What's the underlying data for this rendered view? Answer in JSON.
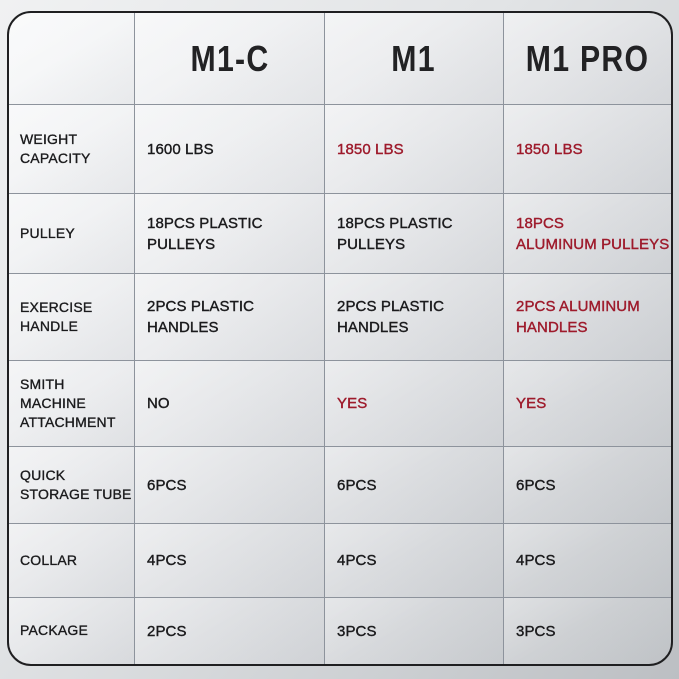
{
  "colors": {
    "highlight_red": "#9e1b2c",
    "text_black": "#1b1b1d",
    "grid_line": "#8d939c",
    "outer_border": "#1f1f21"
  },
  "chart_data": {
    "type": "table",
    "title": "",
    "columns": [
      "M1-C",
      "M1",
      "M1 PRO"
    ],
    "rows": [
      {
        "label": "WEIGHT\nCAPACITY",
        "cells": [
          {
            "text": "1600 LBS",
            "highlight": false
          },
          {
            "text": "1850 LBS",
            "highlight": true
          },
          {
            "text": "1850 LBS",
            "highlight": true
          }
        ]
      },
      {
        "label": "PULLEY",
        "cells": [
          {
            "text": "18PCS PLASTIC\nPULLEYS",
            "highlight": false
          },
          {
            "text": "18PCS PLASTIC\nPULLEYS",
            "highlight": false
          },
          {
            "text": "18PCS\nALUMINUM PULLEYS",
            "highlight": true
          }
        ]
      },
      {
        "label": "EXERCISE\nHANDLE",
        "cells": [
          {
            "text": "2PCS PLASTIC\nHANDLES",
            "highlight": false
          },
          {
            "text": "2PCS PLASTIC\nHANDLES",
            "highlight": false
          },
          {
            "text": "2PCS ALUMINUM\nHANDLES",
            "highlight": true
          }
        ]
      },
      {
        "label": "SMITH MACHINE\nATTACHMENT",
        "cells": [
          {
            "text": "NO",
            "highlight": false
          },
          {
            "text": "YES",
            "highlight": true
          },
          {
            "text": "YES",
            "highlight": true
          }
        ]
      },
      {
        "label": "QUICK\nSTORAGE TUBE",
        "cells": [
          {
            "text": "6PCS",
            "highlight": false
          },
          {
            "text": "6PCS",
            "highlight": false
          },
          {
            "text": "6PCS",
            "highlight": false
          }
        ]
      },
      {
        "label": "COLLAR",
        "cells": [
          {
            "text": "4PCS",
            "highlight": false
          },
          {
            "text": "4PCS",
            "highlight": false
          },
          {
            "text": "4PCS",
            "highlight": false
          }
        ]
      },
      {
        "label": "PACKAGE",
        "cells": [
          {
            "text": "2PCS",
            "highlight": false
          },
          {
            "text": "3PCS",
            "highlight": false
          },
          {
            "text": "3PCS",
            "highlight": false
          }
        ]
      }
    ]
  }
}
